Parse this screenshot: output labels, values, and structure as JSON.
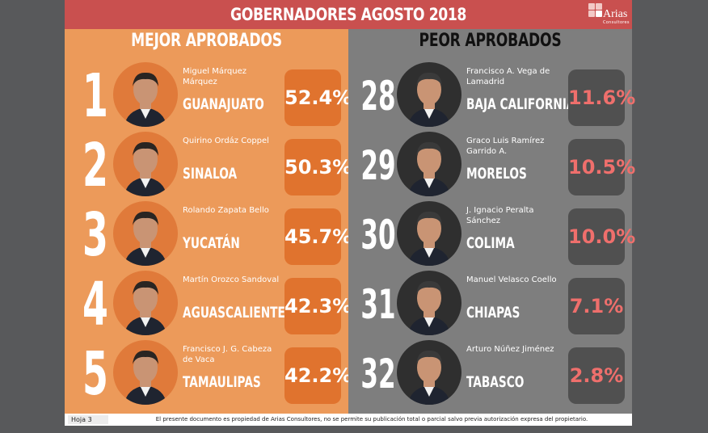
{
  "header": {
    "title": "GOBERNADORES AGOSTO 2018",
    "logo_text": "Arias",
    "logo_subtext": "Consultores"
  },
  "colors": {
    "header_red": "#c9504f",
    "best_panel": "#ec9a5a",
    "best_box": "#e0732e",
    "worst_panel": "#7e7e7e",
    "worst_box": "#505050",
    "worst_pct_text": "#ef6f6c"
  },
  "best": {
    "title": "MEJOR APROBADOS",
    "items": [
      {
        "rank": "1",
        "name": "Miguel Márquez Márquez",
        "state": "GUANAJUATO",
        "pct": "52.4%"
      },
      {
        "rank": "2",
        "name": "Quirino Ordáz Coppel",
        "state": "SINALOA",
        "pct": "50.3%"
      },
      {
        "rank": "3",
        "name": "Rolando Zapata Bello",
        "state": "YUCATÁN",
        "pct": "45.7%"
      },
      {
        "rank": "4",
        "name": "Martín Orozco Sandoval",
        "state": "AGUASCALIENTES",
        "pct": "42.3%"
      },
      {
        "rank": "5",
        "name": "Francisco J. G. Cabeza de Vaca",
        "state": "TAMAULIPAS",
        "pct": "42.2%"
      }
    ]
  },
  "worst": {
    "title": "PEOR APROBADOS",
    "items": [
      {
        "rank": "28",
        "name": "Francisco A. Vega de Lamadrid",
        "state": "BAJA CALIFORNIA",
        "pct": "11.6%"
      },
      {
        "rank": "29",
        "name": "Graco Luis Ramírez Garrido A.",
        "state": "MORELOS",
        "pct": "10.5%"
      },
      {
        "rank": "30",
        "name": "J. Ignacio Peralta Sánchez",
        "state": "COLIMA",
        "pct": "10.0%"
      },
      {
        "rank": "31",
        "name": "Manuel Velasco Coello",
        "state": "CHIAPAS",
        "pct": "7.1%"
      },
      {
        "rank": "32",
        "name": "Arturo Núñez Jiménez",
        "state": "TABASCO",
        "pct": "2.8%"
      }
    ]
  },
  "footer": {
    "page_label": "Hoja 3",
    "notice": "El presente documento es propiedad de Arias Consultores, no se permite su publicación total o parcial salvo previa autorización expresa del propietario."
  }
}
